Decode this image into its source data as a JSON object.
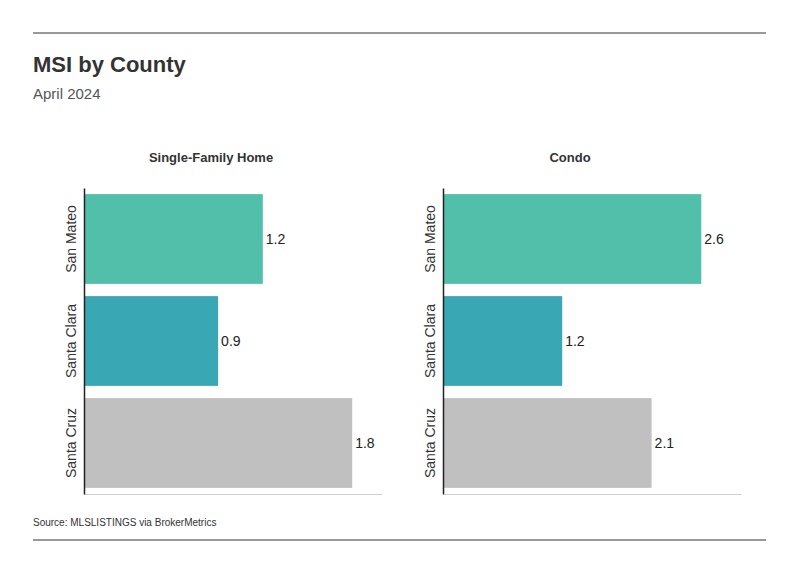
{
  "title": "MSI by County",
  "subtitle": "April 2024",
  "source": "Source: MLSLISTINGS via BrokerMetrics",
  "chart_data": [
    {
      "type": "bar",
      "orientation": "horizontal",
      "title": "Single-Family Home",
      "categories": [
        "San Mateo",
        "Santa Clara",
        "Santa Cruz"
      ],
      "values": [
        1.2,
        0.9,
        1.8
      ],
      "colors": [
        "#52bfaa",
        "#3aa7b5",
        "#c0c0c0"
      ],
      "xlim": [
        0,
        2
      ],
      "data_labels": true,
      "tick_labels": "y"
    },
    {
      "type": "bar",
      "orientation": "horizontal",
      "title": "Condo",
      "categories": [
        "San Mateo",
        "Santa Clara",
        "Santa Cruz"
      ],
      "values": [
        2.6,
        1.2,
        2.1
      ],
      "colors": [
        "#52bfaa",
        "#3aa7b5",
        "#c0c0c0"
      ],
      "xlim": [
        0,
        3
      ],
      "data_labels": true,
      "tick_labels": "y"
    }
  ]
}
